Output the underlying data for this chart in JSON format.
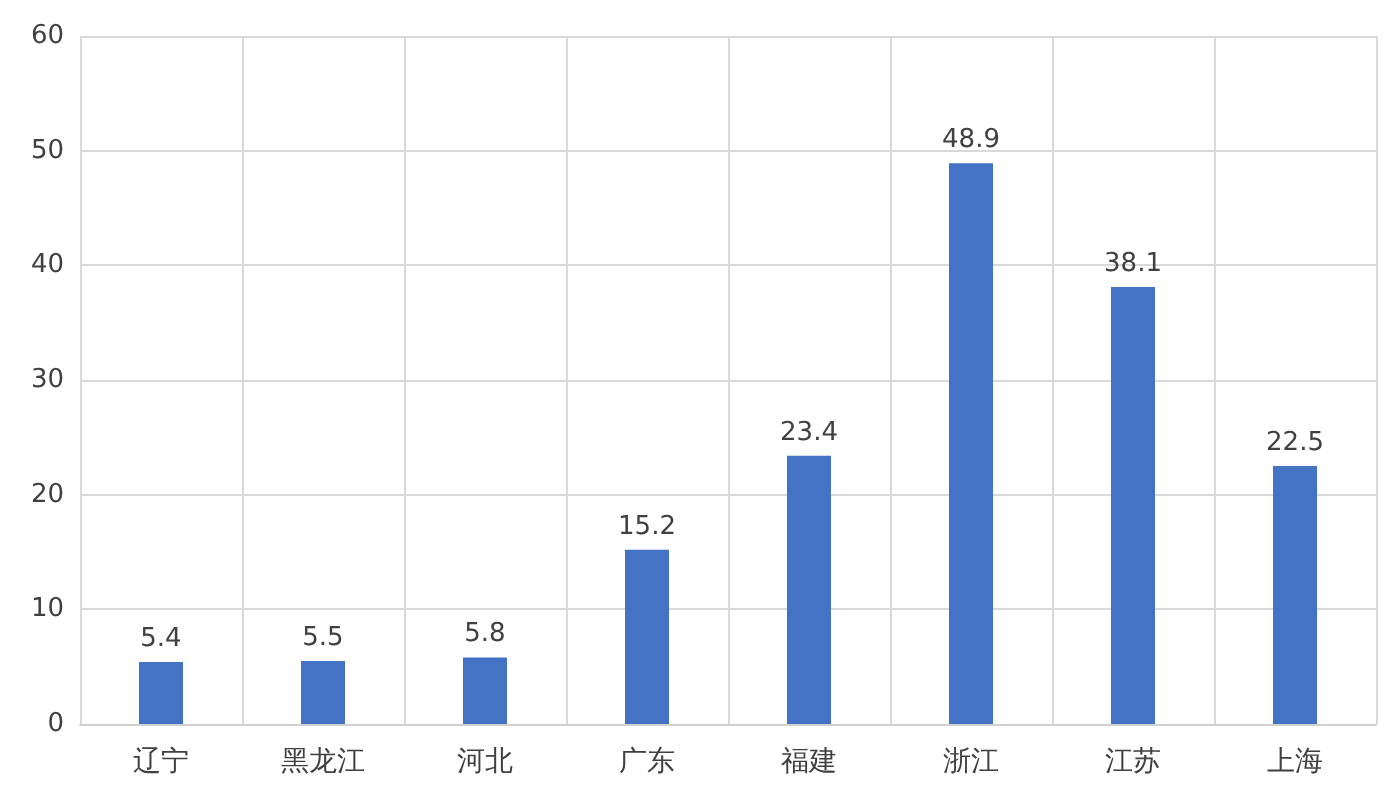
{
  "chart_data": {
    "type": "bar",
    "categories": [
      "辽宁",
      "黑龙江",
      "河北",
      "广东",
      "福建",
      "浙江",
      "江苏",
      "上海"
    ],
    "values": [
      5.4,
      5.5,
      5.8,
      15.2,
      23.4,
      48.9,
      38.1,
      22.5
    ],
    "color": "#4472c4",
    "ylim": [
      0,
      60
    ],
    "yticks": [
      0,
      10,
      20,
      30,
      40,
      50,
      60
    ],
    "grid": true,
    "data_labels": true
  }
}
